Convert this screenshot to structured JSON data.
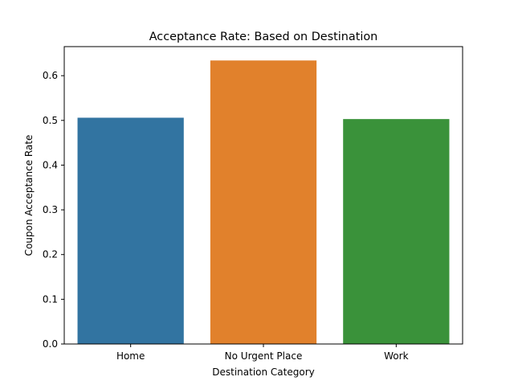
{
  "chart_data": {
    "type": "bar",
    "title": "Acceptance Rate: Based on Destination",
    "xlabel": "Destination Category",
    "ylabel": "Coupon Acceptance Rate",
    "categories": [
      "Home",
      "No Urgent Place",
      "Work"
    ],
    "values": [
      0.506,
      0.634,
      0.503
    ],
    "colors": [
      "#3274a1",
      "#e1812c",
      "#3a923a"
    ],
    "ylim": [
      0,
      0.665
    ],
    "yticks": [
      0.0,
      0.1,
      0.2,
      0.3,
      0.4,
      0.5,
      0.6
    ],
    "ytick_labels": [
      "0.0",
      "0.1",
      "0.2",
      "0.3",
      "0.4",
      "0.5",
      "0.6"
    ],
    "grid": false,
    "legend": "none"
  }
}
